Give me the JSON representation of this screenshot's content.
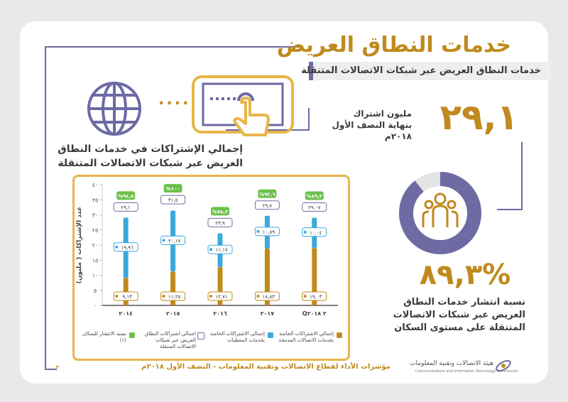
{
  "header": {
    "title": "خدمات النطاق العريض",
    "subtitle": "خدمات النطاق العريض عبر شبكات الاتصالات المتنقلة"
  },
  "stat_subscriptions": {
    "value": "٢٩,١",
    "line1": "مليون اشتراك",
    "line2": "بنهاية النصف الأول",
    "line3": "٢٠١٨م"
  },
  "stat_penetration": {
    "value": "%٨٩,٣",
    "line1": "نسبة انتشار خدمات النطاق",
    "line2": "العريض عبر شبكات الاتصالات",
    "line3": "المتنقلة على مستوى السكان",
    "ring_fraction": 0.893
  },
  "dots_connector": "....",
  "chart_section": {
    "title_line1": "إجمالي الإشتراكات في خدمات النطاق",
    "title_line2": "العريض عبر شبكات الاتصالات المتنقلة"
  },
  "chart_data": {
    "type": "bar",
    "categories": [
      "٢٠١٤",
      "٢٠١٥",
      "٢٠١٦",
      "٢٠١٧",
      "Q٢ ٢٠١٨"
    ],
    "ylabel": "عدد الإشتراكات ( مليون)",
    "ylim": [
      0,
      40
    ],
    "yticks": [
      "٠",
      "٥",
      "١٠",
      "١٥",
      "٢٠",
      "٢٥",
      "٣٠",
      "٣٥",
      "٤٠"
    ],
    "series": [
      {
        "name": "إجمالي الإشتراكات الخاصة بخدمات الاتصالات المدمجة",
        "values": [
          9.13,
          11.25,
          12.71,
          18.83,
          19.03
        ],
        "labels": [
          "٩,١٣",
          "١١,٢٥",
          "١٢,٧١",
          "١٨,٨٣",
          "١٩,٠٣"
        ],
        "color": "#c08a1e"
      },
      {
        "name": "إجمالي الإشتراكات الخاصة بخدمات المعطيات",
        "values": [
          19.96,
          20.17,
          11.17,
          10.89,
          10.04
        ],
        "labels": [
          "١٩,٩٦",
          "٢٠,١٧",
          "١١,١٧",
          "١٠,٨٩",
          "١٠,٠٤"
        ],
        "color": "#3da8dc"
      },
      {
        "name": "اجمالي اشتراكات النطاق العريض عبر شبكات الاتصالات المتنقلة",
        "values": [
          29.1,
          31.5,
          23.9,
          29.7,
          29.07
        ],
        "labels": [
          "٢٩,١",
          "٣١,٥",
          "٢٣,٩",
          "٢٩,٧",
          "٢٩,٠٧"
        ]
      },
      {
        "name": "نسبة الانتشار للسكان (٪)",
        "values": [
          94.5,
          100,
          75.3,
          93.6,
          89.3
        ],
        "labels": [
          "%٩٤,٥",
          "%١٠٠",
          "%٧٥,٣",
          "%٩٣,٦",
          "%٨٩,٣"
        ],
        "color": "#6cc04a"
      }
    ]
  },
  "legend": [
    {
      "text": "إجمالي الاشتراكات الخاصة بخدمات الاتصالات المدمجة",
      "color": "#c08a1e"
    },
    {
      "text": "إجمالي الاشتراكات الخاصة بخدمات المعطيات",
      "color": "#3da8dc"
    },
    {
      "text": "اجمالي اشتراكات النطاق العريض عبر شبكات الاتصالات المتنقلة",
      "color": "#ffffff"
    },
    {
      "text": "نسبة الانتشار للسكان (٪)",
      "color": "#6cc04a"
    }
  ],
  "footer": {
    "text": "مؤشرات الأداء لقطاع الاتصالات وتقنية المعلومات - النصف الأول ٢٠١٨م",
    "page_number": "٣",
    "logo_ar": "هيئة الاتصالات وتقنية المعلومات",
    "logo_en": "Communications and Information Technology Commission"
  },
  "colors": {
    "gold": "#c08a1e",
    "purple": "#6d6aa4",
    "blue": "#3da8dc",
    "green": "#6cc04a"
  }
}
